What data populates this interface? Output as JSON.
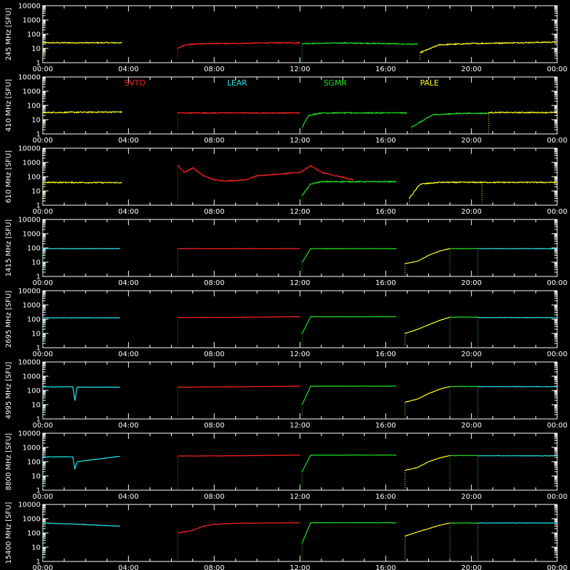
{
  "chart_data": {
    "type": "line",
    "y_scale": "log",
    "ylim": [
      1,
      10000
    ],
    "y_tick_labels": [
      "1",
      "10",
      "100",
      "1000",
      "10000"
    ],
    "xlim_hours": [
      0,
      24
    ],
    "x_tick_labels": [
      "00:00",
      "04:00",
      "08:00",
      "12:00",
      "16:00",
      "20:00",
      "00:00"
    ],
    "ylabel_unit": "[SFU]",
    "grid": false,
    "legend": [
      {
        "name": "SVTO",
        "color": "#ff2020"
      },
      {
        "name": "LEAR",
        "color": "#20e8e8"
      },
      {
        "name": "SGMR",
        "color": "#20e020"
      },
      {
        "name": "PALE",
        "color": "#ffff20"
      }
    ],
    "panels": [
      {
        "freq_label": "245 MHz",
        "level": 25,
        "series": [
          {
            "name": "PALE",
            "x": [
              0,
              3.7
            ],
            "y": [
              25,
              25
            ]
          },
          {
            "name": "SVTO",
            "x": [
              6.3,
              6.6,
              7.5,
              9,
              10,
              11,
              12
            ],
            "y": [
              10,
              18,
              22,
              22,
              24,
              25,
              25
            ]
          },
          {
            "name": "SGMR",
            "x": [
              12.1,
              14,
              16,
              17,
              17.5
            ],
            "y": [
              22,
              24,
              22,
              20,
              20
            ]
          },
          {
            "name": "PALE",
            "x": [
              17.6,
              18.5,
              20,
              22,
              24
            ],
            "y": [
              5,
              18,
              22,
              25,
              28
            ]
          }
        ]
      },
      {
        "freq_label": "410 MHz",
        "level": 30,
        "series": [
          {
            "name": "PALE",
            "x": [
              0,
              3.7
            ],
            "y": [
              32,
              35
            ]
          },
          {
            "name": "SVTO",
            "x": [
              6.3,
              9,
              12
            ],
            "y": [
              30,
              30,
              30
            ]
          },
          {
            "name": "SGMR",
            "x": [
              12.1,
              12.4,
              13,
              16.5,
              17
            ],
            "y": [
              3,
              20,
              30,
              30,
              30
            ]
          },
          {
            "name": "SGMR",
            "x": [
              17.2,
              18.2,
              19.5,
              20.8
            ],
            "y": [
              3,
              22,
              28,
              28
            ]
          },
          {
            "name": "PALE",
            "x": [
              20.8,
              24
            ],
            "y": [
              32,
              32
            ]
          }
        ]
      },
      {
        "freq_label": "610 MHz",
        "level": 40,
        "series": [
          {
            "name": "PALE",
            "x": [
              0,
              3.7
            ],
            "y": [
              40,
              38
            ]
          },
          {
            "name": "SVTO",
            "x": [
              6.3,
              6.6,
              7,
              7.5,
              8,
              8.5,
              9.5,
              10,
              11,
              12,
              12.5,
              13,
              14.5
            ],
            "y": [
              600,
              200,
              400,
              120,
              60,
              50,
              60,
              120,
              150,
              200,
              600,
              200,
              60
            ]
          },
          {
            "name": "SGMR",
            "x": [
              12.1,
              12.5,
              13,
              14,
              16.5
            ],
            "y": [
              5,
              30,
              45,
              45,
              45
            ]
          },
          {
            "name": "PALE",
            "x": [
              17.1,
              17.6,
              18.5,
              20.5
            ],
            "y": [
              3,
              30,
              40,
              40
            ]
          },
          {
            "name": "PALE",
            "x": [
              20.5,
              24
            ],
            "y": [
              40,
              40
            ]
          }
        ]
      },
      {
        "freq_label": "1415 MHz",
        "level": 90,
        "series": [
          {
            "name": "LEAR",
            "x": [
              0,
              3.6
            ],
            "y": [
              90,
              90
            ]
          },
          {
            "name": "SVTO",
            "x": [
              6.3,
              9,
              12
            ],
            "y": [
              90,
              90,
              90
            ]
          },
          {
            "name": "SGMR",
            "x": [
              12.1,
              12.5,
              16.5
            ],
            "y": [
              10,
              90,
              90
            ]
          },
          {
            "name": "PALE",
            "x": [
              16.9,
              17.5,
              18,
              18.5,
              19
            ],
            "y": [
              8,
              12,
              30,
              60,
              90
            ]
          },
          {
            "name": "SGMR",
            "x": [
              19,
              20.3
            ],
            "y": [
              90,
              90
            ]
          },
          {
            "name": "LEAR",
            "x": [
              20.3,
              24
            ],
            "y": [
              90,
              90
            ]
          }
        ]
      },
      {
        "freq_label": "2695 MHz",
        "level": 130,
        "series": [
          {
            "name": "LEAR",
            "x": [
              0,
              3.6
            ],
            "y": [
              125,
              125
            ]
          },
          {
            "name": "SVTO",
            "x": [
              6.3,
              9,
              12
            ],
            "y": [
              130,
              135,
              150
            ]
          },
          {
            "name": "SGMR",
            "x": [
              12.1,
              12.5,
              16.5
            ],
            "y": [
              10,
              150,
              150
            ]
          },
          {
            "name": "PALE",
            "x": [
              16.9,
              17.5,
              18,
              18.5,
              19
            ],
            "y": [
              10,
              20,
              40,
              80,
              140
            ]
          },
          {
            "name": "SGMR",
            "x": [
              19,
              20.3
            ],
            "y": [
              140,
              140
            ]
          },
          {
            "name": "LEAR",
            "x": [
              20.3,
              24
            ],
            "y": [
              130,
              130
            ]
          }
        ]
      },
      {
        "freq_label": "4995 MHz",
        "level": 180,
        "series": [
          {
            "name": "LEAR",
            "x": [
              0,
              1.4,
              1.5,
              1.6,
              3.6
            ],
            "y": [
              180,
              180,
              20,
              170,
              170
            ]
          },
          {
            "name": "SVTO",
            "x": [
              6.3,
              9,
              12
            ],
            "y": [
              170,
              180,
              200
            ]
          },
          {
            "name": "SGMR",
            "x": [
              12.1,
              12.5,
              16.5
            ],
            "y": [
              10,
              200,
              200
            ]
          },
          {
            "name": "PALE",
            "x": [
              16.9,
              17.5,
              18,
              18.5,
              19
            ],
            "y": [
              15,
              25,
              60,
              120,
              190
            ]
          },
          {
            "name": "SGMR",
            "x": [
              19,
              20.3
            ],
            "y": [
              190,
              190
            ]
          },
          {
            "name": "LEAR",
            "x": [
              20.3,
              24
            ],
            "y": [
              185,
              185
            ]
          }
        ]
      },
      {
        "freq_label": "8800 MHz",
        "level": 260,
        "series": [
          {
            "name": "LEAR",
            "x": [
              0,
              1.4,
              1.5,
              1.6,
              3.6
            ],
            "y": [
              220,
              220,
              30,
              100,
              240
            ]
          },
          {
            "name": "SVTO",
            "x": [
              6.3,
              9,
              12
            ],
            "y": [
              250,
              260,
              290
            ]
          },
          {
            "name": "SGMR",
            "x": [
              12.1,
              12.5,
              16.5
            ],
            "y": [
              20,
              290,
              290
            ]
          },
          {
            "name": "PALE",
            "x": [
              16.9,
              17.5,
              18,
              18.5,
              19
            ],
            "y": [
              25,
              40,
              100,
              180,
              270
            ]
          },
          {
            "name": "SGMR",
            "x": [
              19,
              20.3
            ],
            "y": [
              270,
              270
            ]
          },
          {
            "name": "LEAR",
            "x": [
              20.3,
              24
            ],
            "y": [
              260,
              260
            ]
          }
        ]
      },
      {
        "freq_label": "15400 MHz",
        "level": 500,
        "series": [
          {
            "name": "LEAR",
            "x": [
              0,
              1.5,
              3.6
            ],
            "y": [
              500,
              420,
              300
            ]
          },
          {
            "name": "SVTO",
            "x": [
              6.3,
              7,
              7.5,
              8,
              9,
              12
            ],
            "y": [
              100,
              150,
              300,
              400,
              480,
              520
            ]
          },
          {
            "name": "SGMR",
            "x": [
              12.1,
              12.5,
              16.5
            ],
            "y": [
              20,
              520,
              520
            ]
          },
          {
            "name": "PALE",
            "x": [
              16.9,
              17.5,
              18,
              18.5,
              19
            ],
            "y": [
              60,
              120,
              200,
              350,
              500
            ]
          },
          {
            "name": "SGMR",
            "x": [
              19,
              20.3
            ],
            "y": [
              500,
              500
            ]
          },
          {
            "name": "LEAR",
            "x": [
              20.3,
              24
            ],
            "y": [
              500,
              500
            ]
          }
        ]
      }
    ]
  }
}
